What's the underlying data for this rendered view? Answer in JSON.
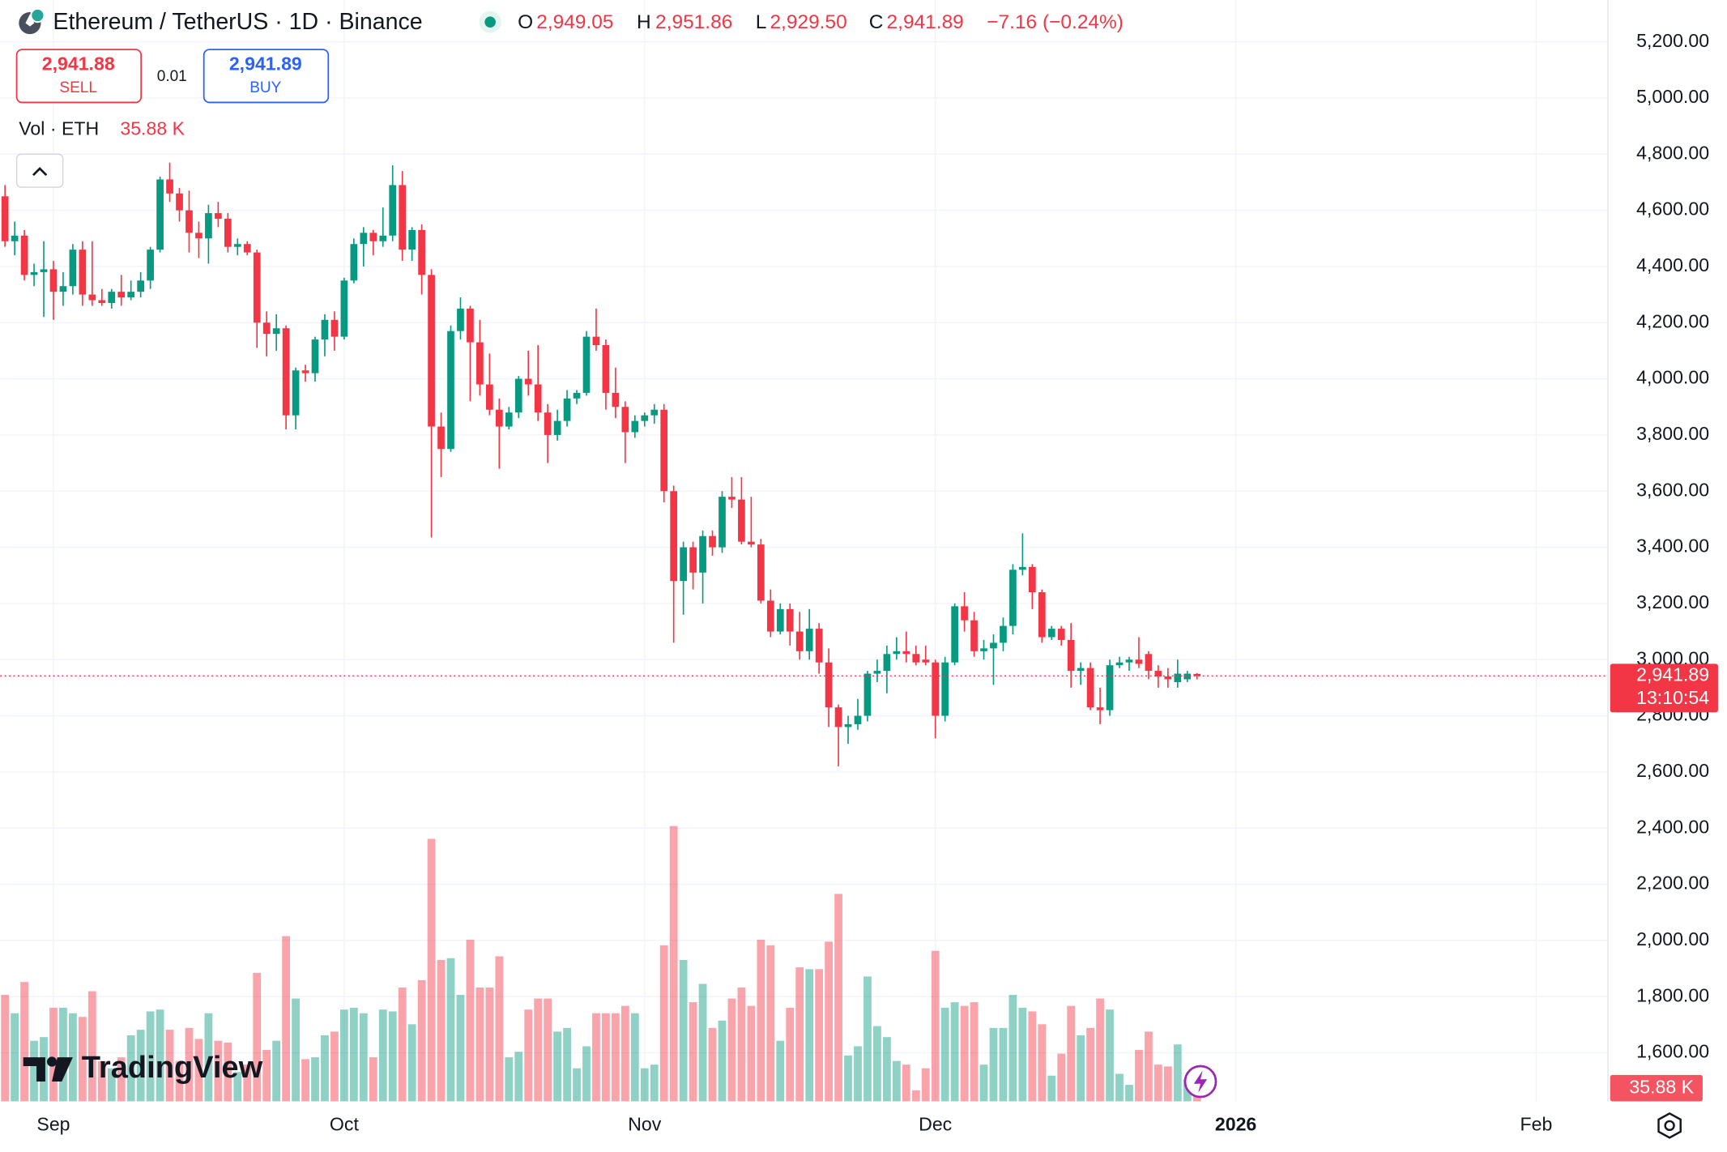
{
  "chart_data": {
    "type": "candlestick",
    "title": "Ethereum / TetherUS · 1D · Binance",
    "ohlc_legend": {
      "open_label": "O",
      "open": "2,949.05",
      "high_label": "H",
      "high": "2,951.86",
      "low_label": "L",
      "low": "2,929.50",
      "close_label": "C",
      "close": "2,941.89",
      "change": "−7.16 (−0.24%)"
    },
    "trade": {
      "sell_price": "2,941.88",
      "sell_label": "SELL",
      "spread": "0.01",
      "buy_price": "2,941.89",
      "buy_label": "BUY"
    },
    "volume_legend": {
      "label": "Vol · ETH",
      "value": "35.88 K"
    },
    "last_price": {
      "value": 2941.89,
      "label": "2,941.89",
      "countdown": "13:10:54"
    },
    "brand": "TradingView",
    "up_color": "#089981",
    "down_color": "#f23645",
    "open": [
      4650,
      4490,
      4510,
      4370,
      4380,
      4390,
      4310,
      4330,
      4460,
      4300,
      4280,
      4270,
      4310,
      4290,
      4310,
      4350,
      4460,
      4710,
      4660,
      4600,
      4520,
      4500,
      4590,
      4570,
      4470,
      4480,
      4450,
      4200,
      4160,
      4180,
      3870,
      4030,
      4020,
      4140,
      4210,
      4150,
      4350,
      4480,
      4520,
      4490,
      4510,
      4690,
      4460,
      4530,
      4370,
      3830,
      3750,
      4170,
      4250,
      4130,
      3980,
      3890,
      3830,
      3880,
      4000,
      3980,
      3880,
      3800,
      3850,
      3930,
      3950,
      4150,
      4120,
      3950,
      3900,
      3810,
      3850,
      3870,
      3890,
      3600,
      3280,
      3400,
      3310,
      3440,
      3400,
      3580,
      3570,
      3420,
      3410,
      3210,
      3100,
      3180,
      3100,
      3030,
      3110,
      2990,
      2830,
      2760,
      2770,
      2800,
      2950,
      2960,
      3020,
      3030,
      3020,
      3000,
      2990,
      2800,
      2990,
      3190,
      3140,
      3030,
      3040,
      3060,
      3120,
      3320,
      3330,
      3240,
      3080,
      3110,
      3070,
      2960,
      2970,
      2830,
      2820,
      2980,
      2990,
      3000,
      3020,
      2960,
      2940,
      2920,
      2930,
      2949.05
    ],
    "high": [
      4690,
      4560,
      4530,
      4410,
      4490,
      4420,
      4380,
      4480,
      4490,
      4490,
      4320,
      4320,
      4370,
      4350,
      4380,
      4470,
      4720,
      4770,
      4680,
      4670,
      4560,
      4620,
      4630,
      4590,
      4500,
      4490,
      4460,
      4240,
      4230,
      4190,
      4040,
      4050,
      4150,
      4230,
      4240,
      4360,
      4500,
      4540,
      4530,
      4610,
      4760,
      4740,
      4540,
      4550,
      4390,
      3880,
      4190,
      4290,
      4260,
      4210,
      4090,
      3930,
      3900,
      4010,
      4100,
      4120,
      3910,
      3890,
      3960,
      3960,
      4170,
      4250,
      4140,
      4040,
      3920,
      3870,
      3880,
      3910,
      3910,
      3620,
      3420,
      3420,
      3460,
      3460,
      3600,
      3650,
      3650,
      3580,
      3430,
      3250,
      3200,
      3200,
      3170,
      3180,
      3130,
      3040,
      2840,
      2800,
      2860,
      2960,
      3000,
      3050,
      3080,
      3100,
      3050,
      3050,
      3000,
      3010,
      3200,
      3240,
      3170,
      3070,
      3090,
      3150,
      3340,
      3450,
      3340,
      3250,
      3120,
      3120,
      3130,
      2990,
      2990,
      2900,
      3000,
      3010,
      3010,
      3080,
      3030,
      2980,
      2970,
      3000,
      2960,
      2951.86
    ],
    "low": [
      4470,
      4440,
      4350,
      4330,
      4220,
      4210,
      4260,
      4300,
      4260,
      4260,
      4260,
      4250,
      4260,
      4280,
      4290,
      4320,
      4450,
      4630,
      4560,
      4450,
      4430,
      4410,
      4540,
      4450,
      4440,
      4440,
      4110,
      4080,
      4100,
      3820,
      3820,
      3990,
      3990,
      4080,
      4100,
      4140,
      4340,
      4400,
      4440,
      4470,
      4490,
      4420,
      4420,
      4300,
      3435,
      3650,
      3740,
      4140,
      3920,
      3940,
      3870,
      3680,
      3820,
      3860,
      3940,
      3850,
      3700,
      3780,
      3830,
      3910,
      3940,
      4100,
      3890,
      3860,
      3700,
      3790,
      3830,
      3840,
      3560,
      3060,
      3160,
      3250,
      3200,
      3370,
      3380,
      3540,
      3410,
      3400,
      3200,
      3080,
      3090,
      3050,
      3000,
      3000,
      2950,
      2760,
      2620,
      2700,
      2750,
      2780,
      2920,
      2880,
      3000,
      2990,
      2980,
      2980,
      2720,
      2780,
      2980,
      3100,
      3010,
      3000,
      2910,
      3030,
      3090,
      3300,
      3180,
      3060,
      3070,
      3050,
      2900,
      2910,
      2820,
      2770,
      2800,
      2970,
      2960,
      2970,
      2930,
      2900,
      2900,
      2900,
      2920,
      2929.5
    ],
    "close": [
      4490,
      4510,
      4370,
      4380,
      4390,
      4310,
      4330,
      4460,
      4300,
      4280,
      4270,
      4310,
      4290,
      4310,
      4350,
      4460,
      4710,
      4660,
      4600,
      4520,
      4500,
      4590,
      4570,
      4470,
      4480,
      4450,
      4200,
      4160,
      4180,
      3870,
      4030,
      4020,
      4140,
      4210,
      4150,
      4350,
      4480,
      4520,
      4490,
      4510,
      4690,
      4460,
      4530,
      4370,
      3830,
      3750,
      4170,
      4250,
      4130,
      3980,
      3890,
      3830,
      3880,
      4000,
      3980,
      3880,
      3800,
      3850,
      3930,
      3950,
      4150,
      4120,
      3950,
      3900,
      3810,
      3850,
      3870,
      3890,
      3600,
      3280,
      3400,
      3310,
      3440,
      3400,
      3580,
      3570,
      3420,
      3410,
      3210,
      3100,
      3180,
      3100,
      3030,
      3110,
      2990,
      2830,
      2760,
      2770,
      2800,
      2950,
      2960,
      3020,
      3030,
      3020,
      2990,
      2990,
      2800,
      2990,
      3190,
      3140,
      3030,
      3040,
      3060,
      3120,
      3320,
      3330,
      3240,
      3080,
      3110,
      3070,
      2960,
      2970,
      2830,
      2820,
      2980,
      2990,
      3000,
      2985,
      2960,
      2940,
      2930,
      2950,
      2950,
      2941.89
    ],
    "volume": [
      290,
      240,
      325,
      165,
      175,
      255,
      255,
      240,
      230,
      300,
      110,
      90,
      120,
      180,
      195,
      245,
      250,
      195,
      110,
      200,
      170,
      240,
      165,
      160,
      80,
      100,
      350,
      140,
      165,
      450,
      280,
      115,
      120,
      180,
      190,
      250,
      255,
      240,
      120,
      250,
      245,
      310,
      210,
      330,
      715,
      385,
      390,
      290,
      440,
      310,
      310,
      395,
      120,
      135,
      250,
      280,
      280,
      190,
      200,
      90,
      150,
      240,
      240,
      240,
      260,
      240,
      90,
      100,
      425,
      750,
      385,
      270,
      320,
      200,
      220,
      280,
      310,
      260,
      440,
      425,
      165,
      255,
      365,
      360,
      360,
      435,
      565,
      125,
      150,
      340,
      205,
      175,
      110,
      100,
      30,
      90,
      410,
      255,
      270,
      260,
      270,
      100,
      200,
      200,
      290,
      255,
      245,
      210,
      70,
      130,
      260,
      180,
      200,
      280,
      250,
      75,
      45,
      140,
      190,
      100,
      95,
      155,
      60,
      35.88
    ],
    "xlim": [
      -0.5,
      165.4
    ],
    "xticks": [
      {
        "value": 5,
        "label": "Sep"
      },
      {
        "value": 35,
        "label": "Oct"
      },
      {
        "value": 66,
        "label": "Nov"
      },
      {
        "value": 96,
        "label": "Dec"
      },
      {
        "value": 127,
        "label": "2026"
      },
      {
        "value": 158,
        "label": "Feb"
      }
    ],
    "ylim": [
      1427,
      5349
    ],
    "yticks": [
      {
        "value": 1600,
        "label": "1,600.00"
      },
      {
        "value": 1800,
        "label": "1,800.00"
      },
      {
        "value": 2000,
        "label": "2,000.00"
      },
      {
        "value": 2200,
        "label": "2,200.00"
      },
      {
        "value": 2400,
        "label": "2,400.00"
      },
      {
        "value": 2600,
        "label": "2,600.00"
      },
      {
        "value": 2800,
        "label": "2,800.00"
      },
      {
        "value": 3000,
        "label": "3,000.00"
      },
      {
        "value": 3200,
        "label": "3,200.00"
      },
      {
        "value": 3400,
        "label": "3,400.00"
      },
      {
        "value": 3600,
        "label": "3,600.00"
      },
      {
        "value": 3800,
        "label": "3,800.00"
      },
      {
        "value": 4000,
        "label": "4,000.00"
      },
      {
        "value": 4200,
        "label": "4,200.00"
      },
      {
        "value": 4400,
        "label": "4,400.00"
      },
      {
        "value": 4600,
        "label": "4,600.00"
      },
      {
        "value": 4800,
        "label": "4,800.00"
      },
      {
        "value": 5000,
        "label": "5,000.00"
      },
      {
        "value": 5200,
        "label": "5,200.00"
      }
    ],
    "vlim": [
      0,
      3000
    ],
    "grid": true
  }
}
